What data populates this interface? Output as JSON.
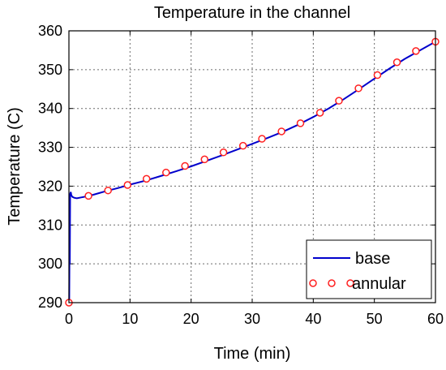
{
  "chart_data": {
    "type": "line",
    "title": "Temperature in the channel",
    "xlabel": "Time (min)",
    "ylabel": "Temperature (C)",
    "xlim": [
      0,
      60
    ],
    "ylim": [
      290,
      360
    ],
    "xticks": [
      0,
      10,
      20,
      30,
      40,
      50,
      60
    ],
    "yticks": [
      290,
      300,
      310,
      320,
      330,
      340,
      350,
      360
    ],
    "grid": true,
    "legend_position": "bottom-right",
    "series": [
      {
        "name": "base",
        "style": "solid-line",
        "color": "#0000cc",
        "x": [
          0.0,
          0.05,
          0.1,
          0.15,
          0.2,
          0.3,
          0.4,
          0.6,
          0.9,
          1.3,
          2,
          3,
          4,
          6,
          8,
          10,
          12.5,
          15,
          17.5,
          20,
          22.5,
          25,
          27.5,
          30,
          32.5,
          35,
          37.5,
          40,
          42.5,
          45,
          47.5,
          50,
          52.5,
          55,
          57.5,
          60
        ],
        "y": [
          290.5,
          291.0,
          307.0,
          300.0,
          318.0,
          318.5,
          317.6,
          317.2,
          317.0,
          316.9,
          317.1,
          317.4,
          317.8,
          318.7,
          319.5,
          320.4,
          321.4,
          322.6,
          323.8,
          325.1,
          326.5,
          327.9,
          329.4,
          330.9,
          332.4,
          334.0,
          335.8,
          337.8,
          340.0,
          342.4,
          345.0,
          347.7,
          350.3,
          352.8,
          355.0,
          357.2
        ]
      },
      {
        "name": "annular",
        "style": "open-circle-markers",
        "color": "#ff2020",
        "x": [
          0,
          3.2,
          6.4,
          9.6,
          12.7,
          15.9,
          19.0,
          22.2,
          25.3,
          28.5,
          31.6,
          34.8,
          37.9,
          41.1,
          44.2,
          47.4,
          50.5,
          53.7,
          56.8,
          60.0
        ],
        "y": [
          290.0,
          317.5,
          318.9,
          320.3,
          321.9,
          323.5,
          325.2,
          326.9,
          328.7,
          330.4,
          332.2,
          334.1,
          336.2,
          338.9,
          342.0,
          345.2,
          348.6,
          351.9,
          354.8,
          357.2
        ]
      }
    ]
  }
}
